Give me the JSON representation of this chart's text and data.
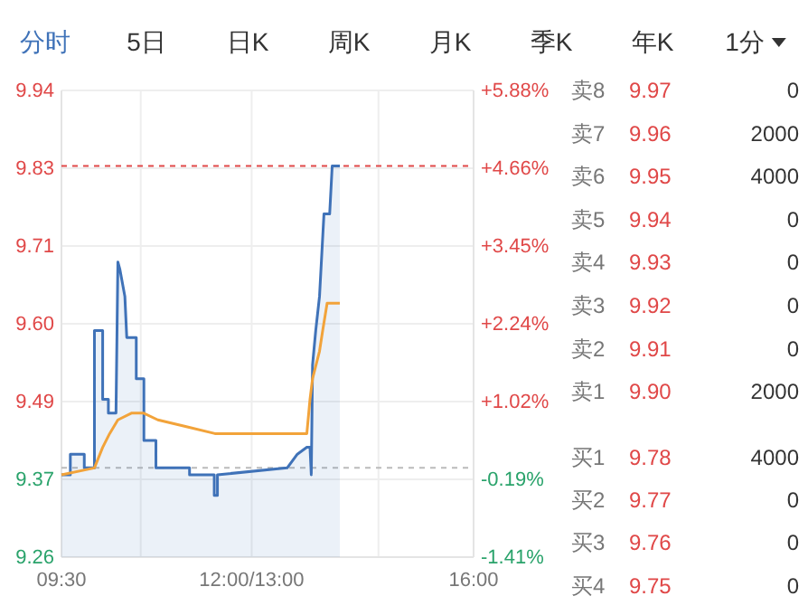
{
  "chart_data": {
    "type": "line",
    "annotations": [
      "分时",
      "5日",
      "日K",
      "周K",
      "月K",
      "季K",
      "年K",
      "1分",
      "卖8",
      "9.97",
      "0",
      "卖7",
      "9.96",
      "2000",
      "卖6",
      "9.95",
      "4000",
      "卖5",
      "9.94",
      "0",
      "卖4",
      "9.93",
      "0",
      "卖3",
      "9.92",
      "0",
      "卖2",
      "9.91",
      "0",
      "卖1",
      "9.90",
      "2000",
      "买1",
      "9.78",
      "4000",
      "买2",
      "9.77",
      "0",
      "买3",
      "9.76",
      "0",
      "买4",
      "9.75",
      "0"
    ],
    "xlim": [
      9.5,
      16
    ],
    "xticks": [
      {
        "value": 9.5,
        "label": "09:30"
      },
      {
        "value": 10.75,
        "label": null
      },
      {
        "value": 12.5,
        "label": "12:00/13:00"
      },
      {
        "value": 14.5,
        "label": null
      },
      {
        "value": 16,
        "label": "16:00"
      }
    ],
    "ylim": [
      9.26,
      9.94
    ],
    "yticks": [
      {
        "value": 9.26,
        "label": "9.26"
      },
      {
        "value": 9.3733,
        "label": "9.37"
      },
      {
        "value": 9.4867,
        "label": "9.49"
      },
      {
        "value": 9.6,
        "label": "9.60"
      },
      {
        "value": 9.7133,
        "label": "9.71"
      },
      {
        "value": 9.8267,
        "label": "9.83"
      },
      {
        "value": 9.94,
        "label": "9.94"
      }
    ],
    "y2lim": [
      -1.41,
      5.88
    ],
    "y2ticks": [
      {
        "value": -1.41,
        "label": "-1.41%"
      },
      {
        "value": -0.19,
        "label": "-0.19%"
      },
      {
        "value": 1.02,
        "label": "+1.02%"
      },
      {
        "value": 2.24,
        "label": "+2.24%"
      },
      {
        "value": 3.45,
        "label": "+3.45%"
      },
      {
        "value": 4.66,
        "label": "+4.66%"
      },
      {
        "value": 5.88,
        "label": "+5.88%"
      }
    ],
    "grid": true,
    "ref_lines": [
      {
        "axis": "y",
        "value": 9.83,
        "color": "#e04848",
        "line_style": "dashed"
      },
      {
        "axis": "y",
        "value": 9.39,
        "color": "#bbbbbb",
        "line_style": "dashed"
      }
    ],
    "series": [
      {
        "type": "area",
        "color": "#3f72b8",
        "x": [
          9.5,
          9.64,
          9.64,
          9.86,
          9.86,
          10.02,
          10.02,
          10.15,
          10.15,
          10.24,
          10.24,
          10.36,
          10.39,
          10.42,
          10.5,
          10.53,
          10.68,
          10.68,
          10.8,
          10.8,
          10.99,
          10.99,
          11.52,
          11.52,
          11.91,
          11.91,
          11.96,
          11.96,
          13.06,
          13.22,
          13.37,
          13.42,
          13.44,
          13.46,
          13.51,
          13.57,
          13.64,
          13.73,
          13.77,
          13.89
        ],
        "values": [
          9.38,
          9.38,
          9.41,
          9.41,
          9.39,
          9.39,
          9.59,
          9.59,
          9.49,
          9.49,
          9.47,
          9.47,
          9.69,
          9.68,
          9.64,
          9.58,
          9.58,
          9.52,
          9.52,
          9.43,
          9.43,
          9.39,
          9.39,
          9.38,
          9.38,
          9.35,
          9.35,
          9.38,
          9.39,
          9.41,
          9.42,
          9.42,
          9.38,
          9.54,
          9.59,
          9.64,
          9.76,
          9.76,
          9.83,
          9.83
        ]
      },
      {
        "color": "#f2a33a",
        "x": [
          9.5,
          10.02,
          10.15,
          10.26,
          10.39,
          10.61,
          10.79,
          11.02,
          11.47,
          11.92,
          13.37,
          13.42,
          13.46,
          13.57,
          13.62,
          13.69,
          13.89
        ],
        "values": [
          9.38,
          9.39,
          9.42,
          9.44,
          9.46,
          9.47,
          9.47,
          9.46,
          9.45,
          9.44,
          9.44,
          9.49,
          9.52,
          9.56,
          9.59,
          9.63,
          9.63
        ]
      }
    ]
  }
}
